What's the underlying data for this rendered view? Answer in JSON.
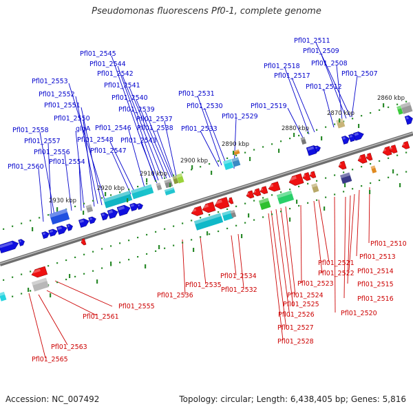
{
  "title": "Pseudomonas fluorescens Pf0-1, complete genome",
  "footer": {
    "accession": "Accession: NC_007492",
    "summary": "Topology: circular; Length: 6,438,405 bp; Genes: 5,816"
  },
  "colors": {
    "forward_label": "#0000cc",
    "reverse_label": "#cc0000",
    "forward_gene": "#1010e0",
    "reverse_gene": "#ee1111",
    "backbone": "#7a7a7a",
    "tick": "#2a8a2a"
  },
  "ticks": [
    "2860 kbp",
    "2870 kbp",
    "2880 kbp",
    "2890 kbp",
    "2900 kbp",
    "2910 kbp",
    "2920 kbp",
    "2930 kbp"
  ],
  "forward_labels": [
    "Pfl01_2511",
    "Pfl01_2509",
    "Pfl01_2508",
    "Pfl01_2507",
    "Pfl01_2518",
    "Pfl01_2517",
    "Pfl01_2512",
    "Pfl01_2519",
    "Pfl01_2531",
    "Pfl01_2530",
    "Pfl01_2529",
    "Pfl01_2533",
    "Pfl01_2545",
    "Pfl01_2544",
    "Pfl01_2542",
    "Pfl01_2541",
    "Pfl01_2540",
    "Pfl01_2539",
    "Pfl01_2537",
    "Pfl01_2538",
    "Pfl01_2553",
    "Pfl01_2552",
    "Pfl01_2551",
    "Pfl01_2550",
    "glgA",
    "Pfl01_2546",
    "Pfl01_2548",
    "Pfl01_2543",
    "Pfl01_2547",
    "Pfl01_2558",
    "Pfl01_2557",
    "Pfl01_2556",
    "Pfl01_2554",
    "Pfl01_2560"
  ],
  "reverse_labels": [
    "Pfl01_2510",
    "Pfl01_2513",
    "Pfl01_2514",
    "Pfl01_2515",
    "Pfl01_2516",
    "Pfl01_2520",
    "Pfl01_2521",
    "Pfl01_2522",
    "Pfl01_2523",
    "Pfl01_2524",
    "Pfl01_2525",
    "Pfl01_2526",
    "Pfl01_2527",
    "Pfl01_2528",
    "Pfl01_2534",
    "Pfl01_2532",
    "Pfl01_2535",
    "Pfl01_2536",
    "Pfl01_2555",
    "Pfl01_2561",
    "Pfl01_2563",
    "Pfl01_2565"
  ]
}
